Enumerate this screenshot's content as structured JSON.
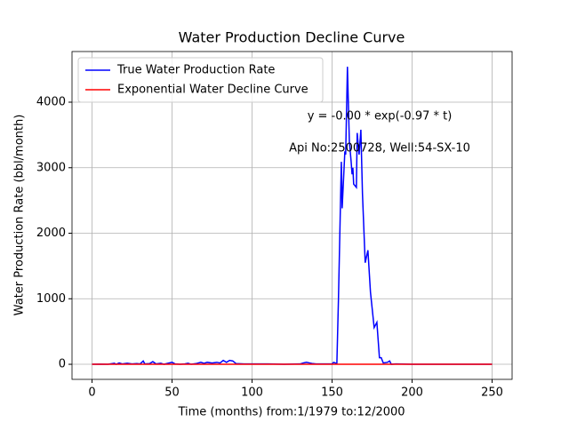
{
  "chart_data": {
    "type": "line",
    "title": "Water Production Decline Curve",
    "xlabel": "Time (months) from:1/1979 to:12/2000",
    "ylabel": "Water Production Rate (bbl/month)",
    "annotations": [
      "y = -0.00 * exp(-0.97 * t)",
      "Api No:2500728, Well:54-SX-10"
    ],
    "xlim": [
      -12.5,
      262.5
    ],
    "xticks": [
      0,
      50,
      100,
      150,
      200,
      250
    ],
    "ylim": [
      -230,
      4773
    ],
    "yticks": [
      0,
      1000,
      2000,
      3000,
      4000
    ],
    "grid": true,
    "legend": "upper left",
    "series": [
      {
        "name": "True Water Production Rate",
        "color": "#0000ff",
        "x": [
          0,
          5,
          10,
          14,
          15,
          17,
          19,
          22,
          25,
          28,
          30,
          32,
          33,
          36,
          38,
          40,
          43,
          45,
          50,
          52,
          55,
          58,
          60,
          62,
          65,
          68,
          70,
          72,
          75,
          78,
          80,
          82,
          84,
          86,
          88,
          90,
          95,
          100,
          110,
          120,
          130,
          132,
          134,
          136,
          138,
          140,
          145,
          150,
          151,
          153,
          154,
          155.8,
          156.3,
          158,
          158.5,
          159.6,
          160.8,
          161.9,
          162.5,
          163,
          163.5,
          165.2,
          165.7,
          166.9,
          168,
          169,
          170.7,
          172.4,
          174,
          176.3,
          178,
          179.6,
          180.7,
          182,
          184.6,
          186,
          187,
          190,
          200,
          210,
          220,
          230,
          240,
          250
        ],
        "values": [
          0,
          2,
          0,
          15,
          0,
          20,
          5,
          15,
          5,
          10,
          5,
          50,
          5,
          10,
          40,
          5,
          15,
          0,
          30,
          5,
          0,
          5,
          15,
          0,
          10,
          30,
          15,
          30,
          20,
          30,
          20,
          60,
          30,
          60,
          50,
          10,
          5,
          5,
          5,
          0,
          5,
          20,
          30,
          20,
          10,
          5,
          5,
          5,
          30,
          10,
          1000,
          3090,
          2380,
          3250,
          3200,
          4540,
          3400,
          3100,
          2900,
          3000,
          2750,
          2700,
          3530,
          3200,
          3580,
          2600,
          1550,
          1740,
          1100,
          560,
          640,
          100,
          100,
          20,
          30,
          50,
          0,
          5,
          0,
          0,
          0,
          0,
          0,
          0
        ]
      },
      {
        "name": "Exponential Water Decline Curve",
        "color": "#ff0000",
        "x": [
          0,
          50,
          100,
          150,
          200,
          250
        ],
        "values": [
          0,
          0,
          0,
          0,
          0,
          0
        ]
      }
    ]
  }
}
